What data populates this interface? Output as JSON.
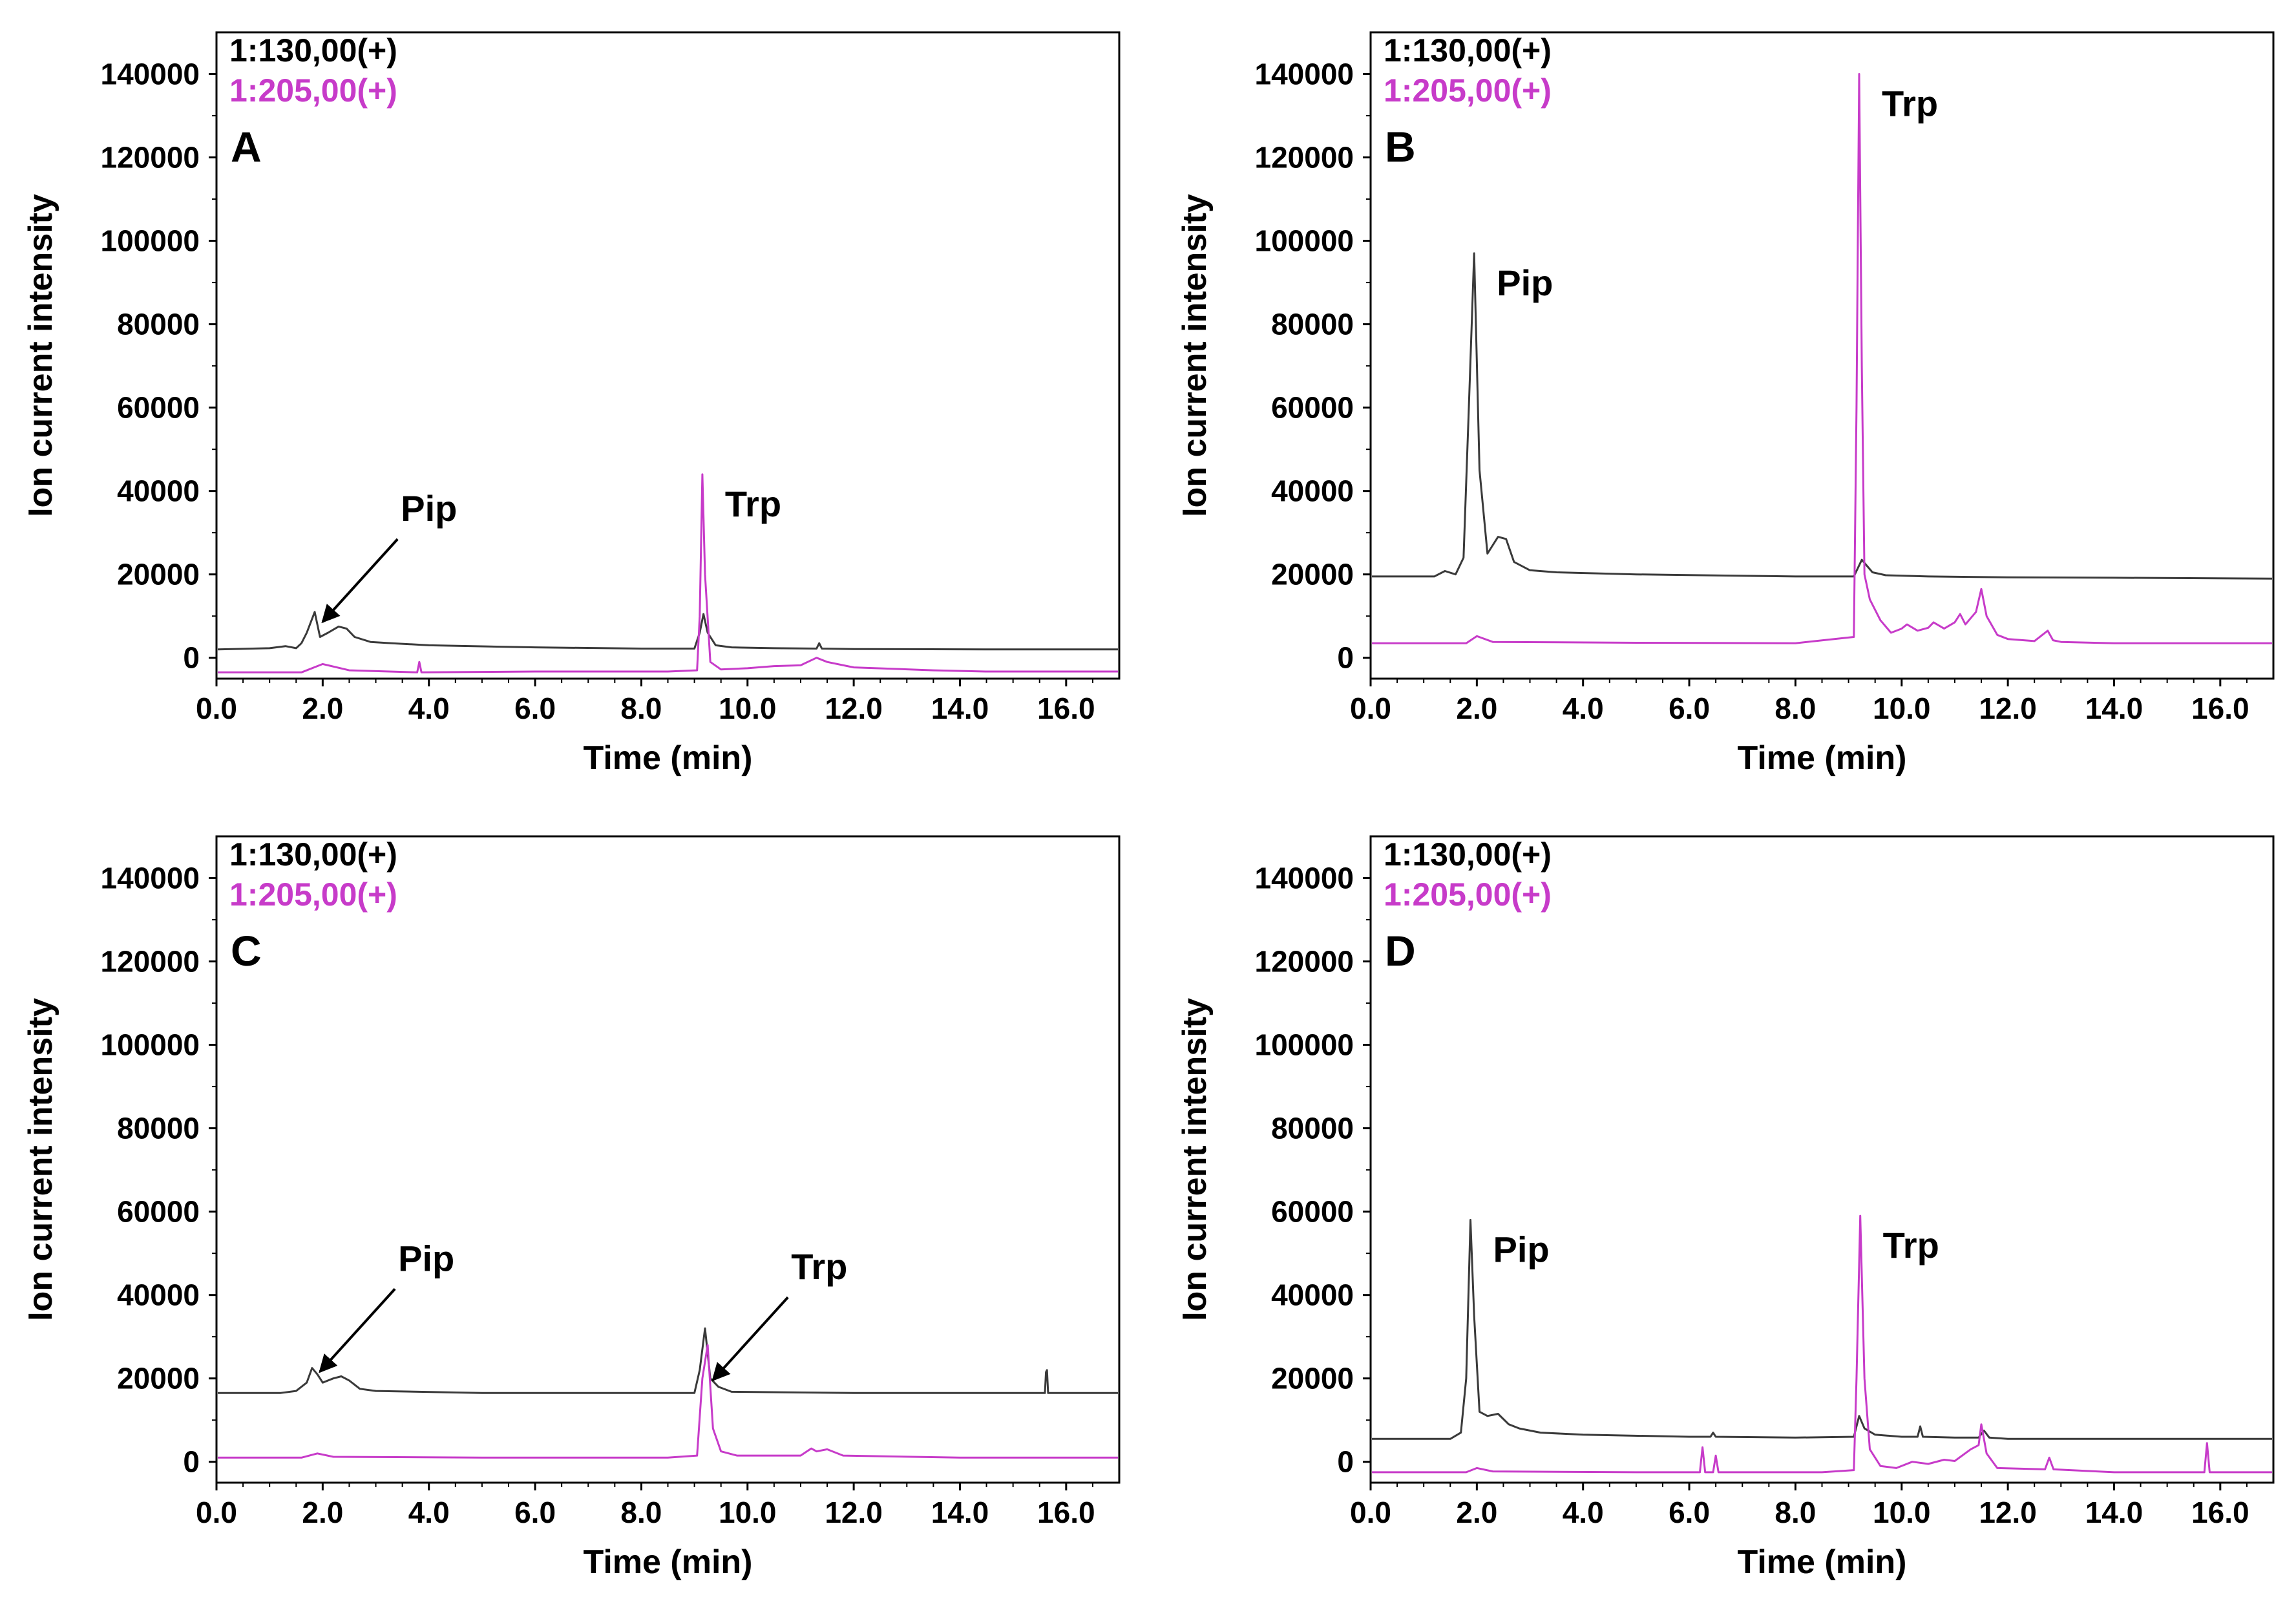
{
  "figure": {
    "colors": {
      "trace_130": "#3a3a3a",
      "trace_205": "#c73bc9",
      "axes": "#000000",
      "arrow": "#000000"
    }
  },
  "chart_data": [
    {
      "type": "line",
      "panel": "A",
      "xlabel": "Time (min)",
      "ylabel": "Ion current intensity",
      "xlim": [
        0,
        17
      ],
      "ylim": [
        -5000,
        150000
      ],
      "xticks": [
        0,
        2,
        4,
        6,
        8,
        10,
        12,
        14,
        16
      ],
      "xtick_labels": [
        "0.0",
        "2.0",
        "4.0",
        "6.0",
        "8.0",
        "10.0",
        "12.0",
        "14.0",
        "16.0"
      ],
      "yticks": [
        0,
        20000,
        40000,
        60000,
        80000,
        100000,
        120000,
        140000
      ],
      "ytick_labels": [
        "0",
        "20000",
        "40000",
        "60000",
        "80000",
        "100000",
        "120000",
        "140000"
      ],
      "legend": [
        "1:130,00(+)",
        "1:205,00(+)"
      ],
      "series": [
        {
          "name": "1:130,00(+)",
          "color": "#3a3a3a",
          "x": [
            0,
            1.0,
            1.3,
            1.5,
            1.6,
            1.7,
            1.85,
            1.95,
            2.1,
            2.3,
            2.45,
            2.6,
            2.9,
            3.3,
            4.0,
            6.0,
            8.0,
            9.0,
            9.1,
            9.17,
            9.25,
            9.4,
            9.7,
            10.5,
            11.3,
            11.35,
            11.4,
            12.0,
            15.0,
            17.0
          ],
          "y": [
            2000,
            2300,
            2800,
            2300,
            3500,
            6000,
            11000,
            5000,
            6000,
            7500,
            7000,
            5000,
            3800,
            3500,
            3000,
            2500,
            2200,
            2200,
            6000,
            10500,
            6000,
            3000,
            2500,
            2300,
            2200,
            3500,
            2200,
            2100,
            2000,
            2000
          ]
        },
        {
          "name": "1:205,00(+)",
          "color": "#c73bc9",
          "x": [
            0,
            1.6,
            2.0,
            2.5,
            3.78,
            3.82,
            3.86,
            6.0,
            8.5,
            9.05,
            9.1,
            9.15,
            9.2,
            9.3,
            9.5,
            10.0,
            10.5,
            11.0,
            11.3,
            11.5,
            12.0,
            13.5,
            14.5,
            17.0
          ],
          "y": [
            -3500,
            -3500,
            -1500,
            -3000,
            -3500,
            -1000,
            -3500,
            -3300,
            -3300,
            -3000,
            10000,
            44000,
            20000,
            -1000,
            -2800,
            -2500,
            -2000,
            -1800,
            0,
            -1000,
            -2300,
            -3000,
            -3300,
            -3300
          ]
        }
      ],
      "annotations": [
        {
          "text": "Pip",
          "arrow": true,
          "x": 1.95,
          "y": 8000
        },
        {
          "text": "Trp",
          "arrow": false,
          "x": 9.15,
          "y": 44000
        }
      ]
    },
    {
      "type": "line",
      "panel": "B",
      "xlabel": "Time (min)",
      "ylabel": "Ion current intensity",
      "xlim": [
        0,
        17
      ],
      "ylim": [
        -5000,
        150000
      ],
      "xticks": [
        0,
        2,
        4,
        6,
        8,
        10,
        12,
        14,
        16
      ],
      "xtick_labels": [
        "0.0",
        "2.0",
        "4.0",
        "6.0",
        "8.0",
        "10.0",
        "12.0",
        "14.0",
        "16.0"
      ],
      "yticks": [
        0,
        20000,
        40000,
        60000,
        80000,
        100000,
        120000,
        140000
      ],
      "ytick_labels": [
        "0",
        "20000",
        "40000",
        "60000",
        "80000",
        "100000",
        "120000",
        "140000"
      ],
      "legend": [
        "1:130,00(+)",
        "1:205,00(+)"
      ],
      "series": [
        {
          "name": "1:130,00(+)",
          "color": "#3a3a3a",
          "x": [
            0,
            1.2,
            1.4,
            1.6,
            1.75,
            1.85,
            1.95,
            2.05,
            2.2,
            2.4,
            2.55,
            2.7,
            3.0,
            3.5,
            5.0,
            8.0,
            9.1,
            9.25,
            9.45,
            9.7,
            10.5,
            12.0,
            14.0,
            17.0
          ],
          "y": [
            19500,
            19500,
            20800,
            20000,
            24000,
            60000,
            97000,
            45000,
            25000,
            29000,
            28500,
            23000,
            21000,
            20500,
            20000,
            19500,
            19500,
            23500,
            20500,
            19800,
            19500,
            19300,
            19200,
            19000
          ]
        },
        {
          "name": "1:205,00(+)",
          "color": "#c73bc9",
          "x": [
            0,
            1.8,
            2.0,
            2.3,
            5.0,
            8.0,
            9.1,
            9.15,
            9.2,
            9.25,
            9.3,
            9.4,
            9.6,
            9.8,
            10.0,
            10.1,
            10.3,
            10.5,
            10.6,
            10.8,
            11.0,
            11.1,
            11.2,
            11.4,
            11.5,
            11.6,
            11.8,
            12.0,
            12.5,
            12.75,
            12.85,
            13.0,
            14.0,
            17.0
          ],
          "y": [
            3500,
            3500,
            5200,
            3800,
            3600,
            3500,
            5000,
            60000,
            140000,
            70000,
            20000,
            14000,
            9000,
            6000,
            7000,
            8000,
            6500,
            7200,
            8500,
            7000,
            8500,
            10500,
            8000,
            11000,
            16500,
            10000,
            5500,
            4500,
            4000,
            6500,
            4200,
            3800,
            3500,
            3500
          ]
        }
      ],
      "annotations": [
        {
          "text": "Pip",
          "arrow": false,
          "x": 1.95,
          "y": 97000
        },
        {
          "text": "Trp",
          "arrow": false,
          "x": 9.2,
          "y": 140000
        }
      ]
    },
    {
      "type": "line",
      "panel": "C",
      "xlabel": "Time (min)",
      "ylabel": "Ion current intensity",
      "xlim": [
        0,
        17
      ],
      "ylim": [
        -5000,
        150000
      ],
      "xticks": [
        0,
        2,
        4,
        6,
        8,
        10,
        12,
        14,
        16
      ],
      "xtick_labels": [
        "0.0",
        "2.0",
        "4.0",
        "6.0",
        "8.0",
        "10.0",
        "12.0",
        "14.0",
        "16.0"
      ],
      "yticks": [
        0,
        20000,
        40000,
        60000,
        80000,
        100000,
        120000,
        140000
      ],
      "ytick_labels": [
        "0",
        "20000",
        "40000",
        "60000",
        "80000",
        "100000",
        "120000",
        "140000"
      ],
      "legend": [
        "1:130,00(+)",
        "1:205,00(+)"
      ],
      "series": [
        {
          "name": "1:130,00(+)",
          "color": "#3a3a3a",
          "x": [
            0,
            1.2,
            1.5,
            1.7,
            1.8,
            1.9,
            2.0,
            2.2,
            2.35,
            2.5,
            2.7,
            3.0,
            5.0,
            8.0,
            9.0,
            9.1,
            9.2,
            9.3,
            9.45,
            9.7,
            12.0,
            15.6,
            15.62,
            15.64,
            15.66,
            17.0
          ],
          "y": [
            16500,
            16500,
            17000,
            19000,
            22500,
            21000,
            19000,
            20000,
            20500,
            19500,
            17500,
            17000,
            16500,
            16500,
            16500,
            22000,
            32000,
            20000,
            18000,
            16800,
            16500,
            16500,
            21500,
            22000,
            16500,
            16500
          ]
        },
        {
          "name": "1:205,00(+)",
          "color": "#c73bc9",
          "x": [
            0,
            1.6,
            1.9,
            2.2,
            5.0,
            8.5,
            9.05,
            9.15,
            9.25,
            9.35,
            9.5,
            9.8,
            11.0,
            11.2,
            11.3,
            11.5,
            11.8,
            14.0,
            17.0
          ],
          "y": [
            1000,
            1000,
            2000,
            1200,
            1000,
            1000,
            1500,
            20000,
            28000,
            8000,
            2500,
            1500,
            1500,
            3200,
            2500,
            3000,
            1500,
            1000,
            1000
          ]
        }
      ],
      "annotations": [
        {
          "text": "Pip",
          "arrow": true,
          "x": 1.9,
          "y": 21000
        },
        {
          "text": "Trp",
          "arrow": true,
          "x": 9.3,
          "y": 19000
        }
      ]
    },
    {
      "type": "line",
      "panel": "D",
      "xlabel": "Time (min)",
      "ylabel": "Ion current intensity",
      "xlim": [
        0,
        17
      ],
      "ylim": [
        -5000,
        150000
      ],
      "xticks": [
        0,
        2,
        4,
        6,
        8,
        10,
        12,
        14,
        16
      ],
      "xtick_labels": [
        "0.0",
        "2.0",
        "4.0",
        "6.0",
        "8.0",
        "10.0",
        "12.0",
        "14.0",
        "16.0"
      ],
      "yticks": [
        0,
        20000,
        40000,
        60000,
        80000,
        100000,
        120000,
        140000
      ],
      "ytick_labels": [
        "0",
        "20000",
        "40000",
        "60000",
        "80000",
        "100000",
        "120000",
        "140000"
      ],
      "legend": [
        "1:130,00(+)",
        "1:205,00(+)"
      ],
      "series": [
        {
          "name": "1:130,00(+)",
          "color": "#3a3a3a",
          "x": [
            0,
            1.5,
            1.7,
            1.8,
            1.88,
            1.95,
            2.05,
            2.2,
            2.4,
            2.6,
            2.8,
            3.2,
            4.0,
            6.0,
            6.4,
            6.45,
            6.5,
            8.0,
            9.1,
            9.2,
            9.3,
            9.5,
            10.0,
            10.3,
            10.35,
            10.4,
            11.0,
            11.45,
            11.55,
            11.65,
            12.0,
            14.0,
            17.0
          ],
          "y": [
            5500,
            5500,
            7000,
            20000,
            58000,
            35000,
            12000,
            11000,
            11500,
            9000,
            8000,
            7000,
            6500,
            6000,
            6000,
            7000,
            6000,
            5800,
            6000,
            11000,
            8000,
            6500,
            6000,
            6000,
            8500,
            6000,
            5800,
            5800,
            7500,
            5800,
            5500,
            5500,
            5500
          ]
        },
        {
          "name": "1:205,00(+)",
          "color": "#c73bc9",
          "x": [
            0,
            1.8,
            2.0,
            2.3,
            5.0,
            6.2,
            6.25,
            6.3,
            6.45,
            6.5,
            6.55,
            8.5,
            9.1,
            9.15,
            9.22,
            9.3,
            9.4,
            9.6,
            9.9,
            10.2,
            10.5,
            10.8,
            11.0,
            11.3,
            11.45,
            11.5,
            11.6,
            11.8,
            12.7,
            12.78,
            12.86,
            14.0,
            15.7,
            15.75,
            15.8,
            17.0
          ],
          "y": [
            -2500,
            -2500,
            -1500,
            -2300,
            -2500,
            -2500,
            3500,
            -2500,
            -2500,
            1500,
            -2500,
            -2500,
            -2000,
            20000,
            59000,
            20000,
            3000,
            -1000,
            -1500,
            0,
            -500,
            500,
            200,
            3000,
            4000,
            9000,
            2000,
            -1500,
            -1800,
            1000,
            -1800,
            -2500,
            -2500,
            4500,
            -2500,
            -2500
          ]
        }
      ],
      "annotations": [
        {
          "text": "Pip",
          "arrow": false,
          "x": 1.88,
          "y": 58000
        },
        {
          "text": "Trp",
          "arrow": false,
          "x": 9.22,
          "y": 59000
        }
      ]
    }
  ]
}
